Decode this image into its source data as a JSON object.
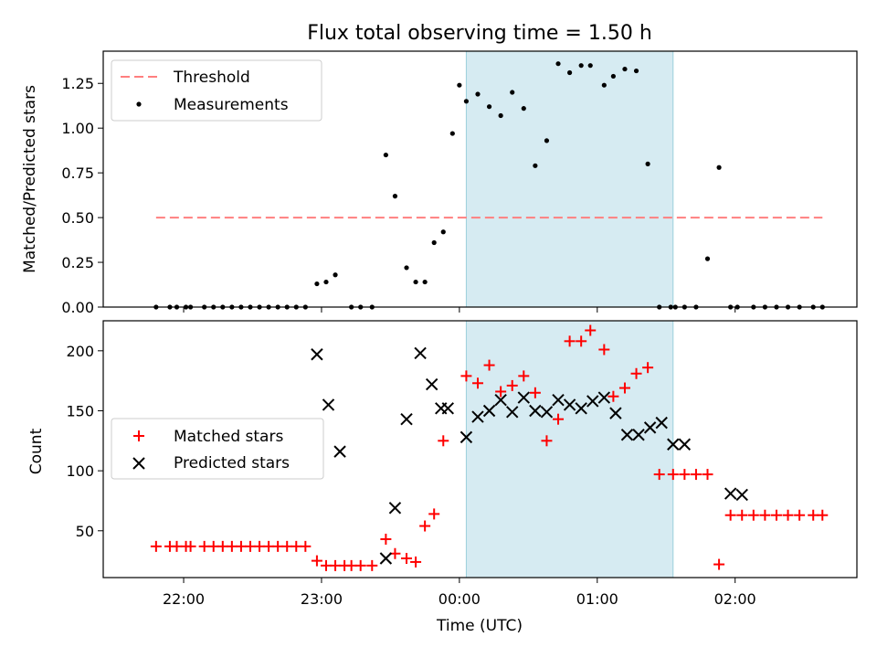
{
  "chart_data": [
    {
      "type": "scatter",
      "title": "Flux total observing time = 1.50 h",
      "xlabel": "",
      "ylabel": "Matched/Predicted stars",
      "xlim": [
        "21:25",
        "02:53"
      ],
      "ylim": [
        0,
        1.43
      ],
      "yticks": [
        0.0,
        0.25,
        0.5,
        0.75,
        1.0,
        1.25
      ],
      "ytick_labels": [
        "0.00",
        "0.25",
        "0.50",
        "0.75",
        "1.00",
        "1.25"
      ],
      "highlight_span": [
        "00:03",
        "01:33"
      ],
      "highlight_color": "#add8e6",
      "legend": {
        "position": "upper-left",
        "entries": [
          "Threshold",
          "Measurements"
        ]
      },
      "threshold": {
        "name": "Threshold",
        "value": 0.5,
        "x_start": "21:48",
        "x_end": "02:38",
        "color": "#ff7f7f",
        "style": "dashed"
      },
      "series": [
        {
          "name": "Measurements",
          "color": "#000000",
          "marker": "dot",
          "x": [
            "21:48",
            "21:54",
            "21:57",
            "22:01",
            "22:03",
            "22:09",
            "22:13",
            "22:17",
            "22:21",
            "22:25",
            "22:29",
            "22:33",
            "22:37",
            "22:41",
            "22:45",
            "22:49",
            "22:53",
            "22:58",
            "23:02",
            "23:06",
            "23:13",
            "23:17",
            "23:22",
            "23:28",
            "23:32",
            "23:37",
            "23:41",
            "23:45",
            "23:49",
            "23:53",
            "23:57",
            "00:00",
            "00:03",
            "00:08",
            "00:13",
            "00:18",
            "00:23",
            "00:28",
            "00:33",
            "00:38",
            "00:43",
            "00:48",
            "00:53",
            "00:57",
            "01:03",
            "01:07",
            "01:12",
            "01:17",
            "01:22",
            "01:27",
            "01:32",
            "01:34",
            "01:38",
            "01:43",
            "01:48",
            "01:53",
            "01:58",
            "02:01",
            "02:08",
            "02:13",
            "02:18",
            "02:23",
            "02:28",
            "02:34",
            "02:38"
          ],
          "y": [
            0.0,
            0.0,
            0.0,
            0.0,
            0.0,
            0.0,
            0.0,
            0.0,
            0.0,
            0.0,
            0.0,
            0.0,
            0.0,
            0.0,
            0.0,
            0.0,
            0.0,
            0.13,
            0.14,
            0.18,
            0.0,
            0.0,
            0.0,
            0.85,
            0.62,
            0.22,
            0.14,
            0.14,
            0.36,
            0.42,
            0.97,
            1.24,
            1.15,
            1.19,
            1.12,
            1.07,
            1.2,
            1.11,
            0.79,
            0.93,
            1.36,
            1.31,
            1.35,
            1.35,
            1.24,
            1.29,
            1.33,
            1.32,
            0.8,
            0.0,
            0.0,
            0.0,
            0.0,
            0.0,
            0.27,
            0.78,
            0.0,
            0.0,
            0.0,
            0.0,
            0.0,
            0.0,
            0.0,
            0.0,
            0.0
          ]
        }
      ]
    },
    {
      "type": "scatter",
      "title": "",
      "xlabel": "Time (UTC)",
      "ylabel": "Count",
      "xlim": [
        "21:25",
        "02:53"
      ],
      "ylim": [
        11,
        225
      ],
      "xticks": [
        "22:00",
        "23:00",
        "00:00",
        "01:00",
        "02:00"
      ],
      "yticks": [
        50,
        100,
        150,
        200
      ],
      "highlight_span": [
        "00:03",
        "01:33"
      ],
      "highlight_color": "#add8e6",
      "legend": {
        "position": "center-left",
        "entries": [
          "Matched stars",
          "Predicted stars"
        ]
      },
      "series": [
        {
          "name": "Matched stars",
          "color": "#ff0000",
          "marker": "plus",
          "x": [
            "21:48",
            "21:54",
            "21:57",
            "22:01",
            "22:03",
            "22:09",
            "22:13",
            "22:17",
            "22:21",
            "22:25",
            "22:29",
            "22:33",
            "22:37",
            "22:41",
            "22:45",
            "22:49",
            "22:53",
            "22:58",
            "23:02",
            "23:06",
            "23:10",
            "23:13",
            "23:17",
            "23:22",
            "23:28",
            "23:32",
            "23:37",
            "23:41",
            "23:45",
            "23:49",
            "23:53",
            "00:03",
            "00:08",
            "00:13",
            "00:18",
            "00:23",
            "00:28",
            "00:33",
            "00:38",
            "00:43",
            "00:48",
            "00:53",
            "00:57",
            "01:03",
            "01:07",
            "01:12",
            "01:17",
            "01:22",
            "01:27",
            "01:33",
            "01:38",
            "01:43",
            "01:48",
            "01:53",
            "01:58",
            "02:03",
            "02:08",
            "02:13",
            "02:18",
            "02:23",
            "02:28",
            "02:34",
            "02:38"
          ],
          "y": [
            37,
            37,
            37,
            37,
            37,
            37,
            37,
            37,
            37,
            37,
            37,
            37,
            37,
            37,
            37,
            37,
            37,
            25,
            21,
            21,
            21,
            21,
            21,
            21,
            43,
            31,
            27,
            24,
            54,
            64,
            125,
            179,
            173,
            188,
            166,
            171,
            179,
            165,
            125,
            143,
            208,
            208,
            217,
            201,
            162,
            169,
            181,
            186,
            97,
            97,
            97,
            97,
            97,
            22,
            63,
            63,
            63,
            63,
            63,
            63,
            63,
            63,
            63
          ]
        },
        {
          "name": "Predicted stars",
          "color": "#000000",
          "marker": "x",
          "x": [
            "22:58",
            "23:03",
            "23:08",
            "23:28",
            "23:32",
            "23:37",
            "23:43",
            "23:48",
            "23:52",
            "23:55",
            "00:03",
            "00:08",
            "00:13",
            "00:18",
            "00:23",
            "00:28",
            "00:33",
            "00:38",
            "00:43",
            "00:48",
            "00:53",
            "00:58",
            "01:03",
            "01:08",
            "01:13",
            "01:18",
            "01:23",
            "01:28",
            "01:33",
            "01:38",
            "01:58",
            "02:03"
          ],
          "y": [
            197,
            155,
            116,
            27,
            69,
            143,
            198,
            172,
            152,
            152,
            128,
            145,
            150,
            159,
            149,
            161,
            150,
            149,
            159,
            155,
            152,
            158,
            161,
            148,
            130,
            130,
            136,
            140,
            122,
            122,
            81,
            80
          ]
        }
      ]
    }
  ]
}
